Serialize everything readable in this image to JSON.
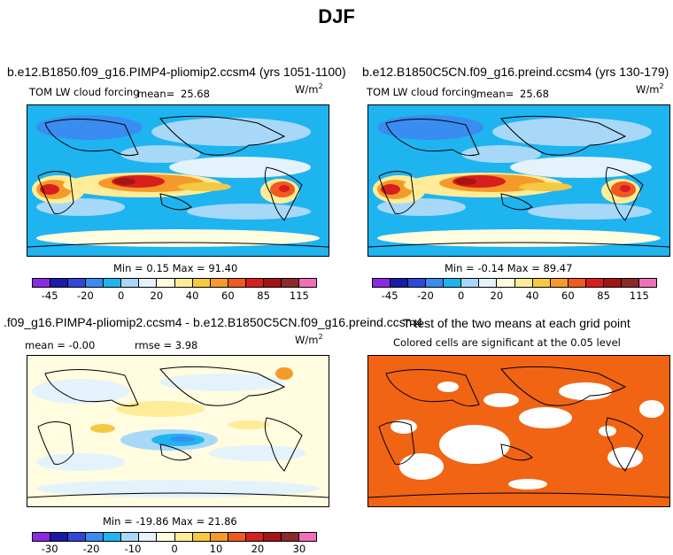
{
  "title": "DJF",
  "panels": [
    {
      "case": "b.e12.B1850.f09_g16.PIMP4-pliomip2.ccsm4 (yrs 1051-1100)",
      "variable": "TOM LW cloud forcing",
      "mean_label": "mean=",
      "mean_value": "25.68",
      "units": "W/m",
      "units_exp": "2",
      "minmax": "Min =    0.15 Max =  91.40",
      "colorbar_ticks": [
        "-45",
        "-20",
        "0",
        "20",
        "40",
        "60",
        "85",
        "115"
      ]
    },
    {
      "case": "b.e12.B1850C5CN.f09_g16.preind.ccsm4 (yrs 130-179)",
      "variable": "TOM LW cloud forcing",
      "mean_label": "mean=",
      "mean_value": "25.68",
      "units": "W/m",
      "units_exp": "2",
      "minmax": "Min =  -0.14 Max =  89.47",
      "colorbar_ticks": [
        "-45",
        "-20",
        "0",
        "20",
        "40",
        "60",
        "85",
        "115"
      ]
    },
    {
      "case": ".f09_g16.PIMP4-pliomip2.ccsm4 - b.e12.B1850C5CN.f09_g16.preind.ccsm4",
      "mean_text": "mean =  -0.00",
      "rmse_text": "rmse =    3.98",
      "units": "W/m",
      "units_exp": "2",
      "minmax": "Min = -19.86 Max =  21.86",
      "colorbar_ticks": [
        "-30",
        "-20",
        "-10",
        "0",
        "10",
        "20",
        "30"
      ]
    },
    {
      "case": "T-test of the two means at each grid point",
      "subtitle": "Colored cells are significant at the 0.05 level"
    }
  ],
  "colors": {
    "field_palette": [
      "#8a2be2",
      "#1a1aa8",
      "#2f48d8",
      "#3a8cf0",
      "#1eb4f0",
      "#a8d8f8",
      "#e4f2fc",
      "#fffce0",
      "#ffec98",
      "#f5c842",
      "#f59a28",
      "#f05a1e",
      "#d81e1e",
      "#a51414",
      "#8b2a2a",
      "#f070b8"
    ],
    "diff_palette": [
      "#8a2be2",
      "#1a1aa8",
      "#2f48d8",
      "#3a8cf0",
      "#1eb4f0",
      "#a8d8f8",
      "#e4f2fc",
      "#fffce0",
      "#ffec98",
      "#f5c842",
      "#f59a28",
      "#f05a1e",
      "#d81e1e",
      "#a51414",
      "#8b2a2a",
      "#f070b8"
    ],
    "significance": "#f06414"
  }
}
